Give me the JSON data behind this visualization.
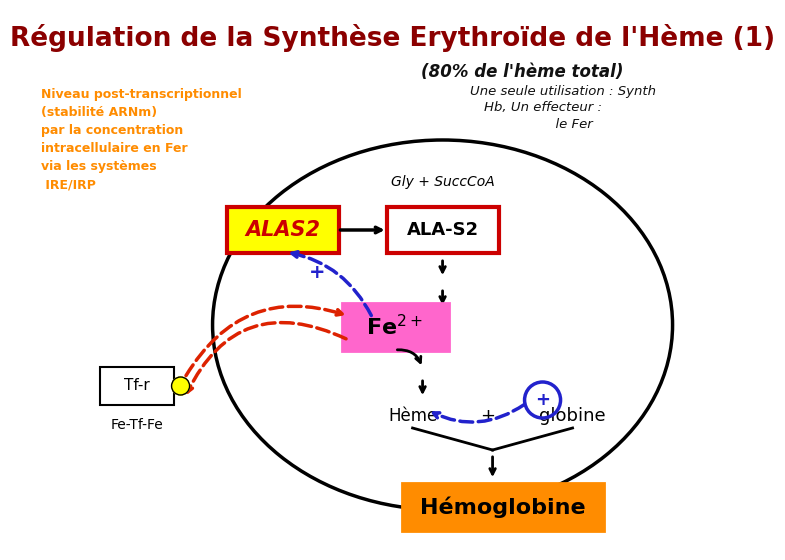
{
  "title": "Régulation de la Synthèse Erythroïde de l'Hème (1)",
  "title_color": "#8B0000",
  "title_fontsize": 19,
  "background_color": "#FFFFFF",
  "subtitle1": "(80% de l'hème total)",
  "subtitle2_line1": "Une seule utilisation : Synth",
  "subtitle2_line2": "Hb, Un effecteur :",
  "subtitle2_line3": "          le Fer",
  "left_text": "Niveau post-transcriptionnel\n(stabilité ARNm)\npar la concentration\nintracellulaire en Fer\nvia les systèmes\n IRE/IRP",
  "left_text_color": "#FF8C00",
  "alas2_text": "ALAS2",
  "alas2_text_color": "#CC0000",
  "alas2_bg": "#FFFF00",
  "alas2_border": "#CC0000",
  "alas2s_text": "ALA-S2",
  "fe2_text": "Fe2+",
  "fe2_bg": "#FF66CC",
  "heme_text": "Hème",
  "plus_text": "+",
  "globine_text": "globine",
  "hemoglobine_text": "Hémoglobine",
  "hemoglobine_bg": "#FF8C00",
  "tfr_text": "Tf-r",
  "fetffe_text": "Fe-Tf-Fe",
  "gly_text": "Gly + SuccCoA"
}
